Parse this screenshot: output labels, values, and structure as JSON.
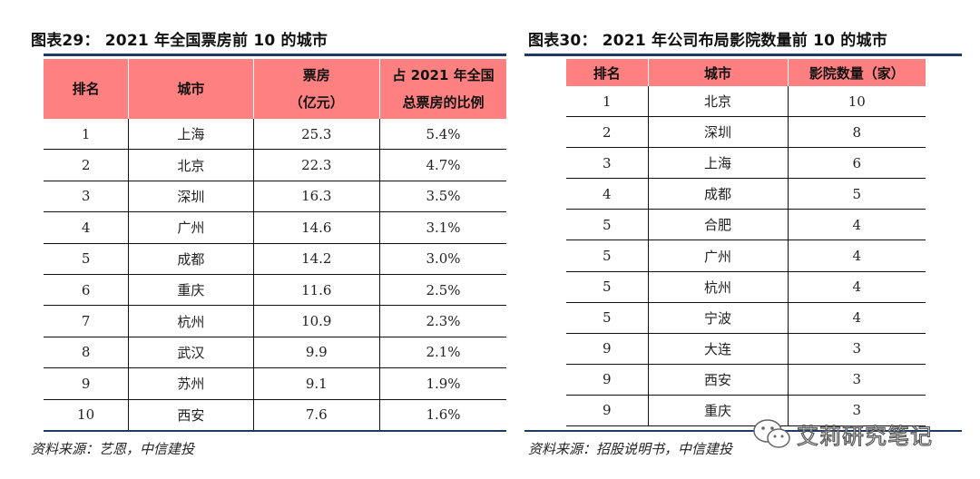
{
  "left": {
    "title": "图表29： 2021 年全国票房前 10 的城市",
    "headers": [
      "排名",
      "城市",
      "票房\n（亿元）",
      "占 2021 年全国\n总票房的比例"
    ],
    "rows": [
      [
        "1",
        "上海",
        "25.3",
        "5.4%"
      ],
      [
        "2",
        "北京",
        "22.3",
        "4.7%"
      ],
      [
        "3",
        "深圳",
        "16.3",
        "3.5%"
      ],
      [
        "4",
        "广州",
        "14.6",
        "3.1%"
      ],
      [
        "5",
        "成都",
        "14.2",
        "3.0%"
      ],
      [
        "6",
        "重庆",
        "11.6",
        "2.5%"
      ],
      [
        "7",
        "杭州",
        "10.9",
        "2.3%"
      ],
      [
        "8",
        "武汉",
        "9.9",
        "2.1%"
      ],
      [
        "9",
        "苏州",
        "9.1",
        "1.9%"
      ],
      [
        "10",
        "西安",
        "7.6",
        "1.6%"
      ]
    ],
    "source": "资料来源：艺恩，中信建投"
  },
  "right": {
    "title": "图表30： 2021 年公司布局影院数量前 10 的城市",
    "headers": [
      "排名",
      "城市",
      "影院数量（家）"
    ],
    "rows": [
      [
        "1",
        "北京",
        "10"
      ],
      [
        "2",
        "深圳",
        "8"
      ],
      [
        "3",
        "上海",
        "6"
      ],
      [
        "4",
        "成都",
        "5"
      ],
      [
        "5",
        "合肥",
        "4"
      ],
      [
        "5",
        "广州",
        "4"
      ],
      [
        "5",
        "杭州",
        "4"
      ],
      [
        "5",
        "宁波",
        "4"
      ],
      [
        "9",
        "大连",
        "3"
      ],
      [
        "9",
        "西安",
        "3"
      ],
      [
        "9",
        "重庆",
        "3"
      ]
    ],
    "source": "资料来源：招股说明书，中信建投"
  },
  "watermark": {
    "text": "艾莉研究笔记",
    "icon": "wechat-icon"
  },
  "colors": {
    "header_fill": "#ff8080",
    "rule": "#1f3a63"
  }
}
